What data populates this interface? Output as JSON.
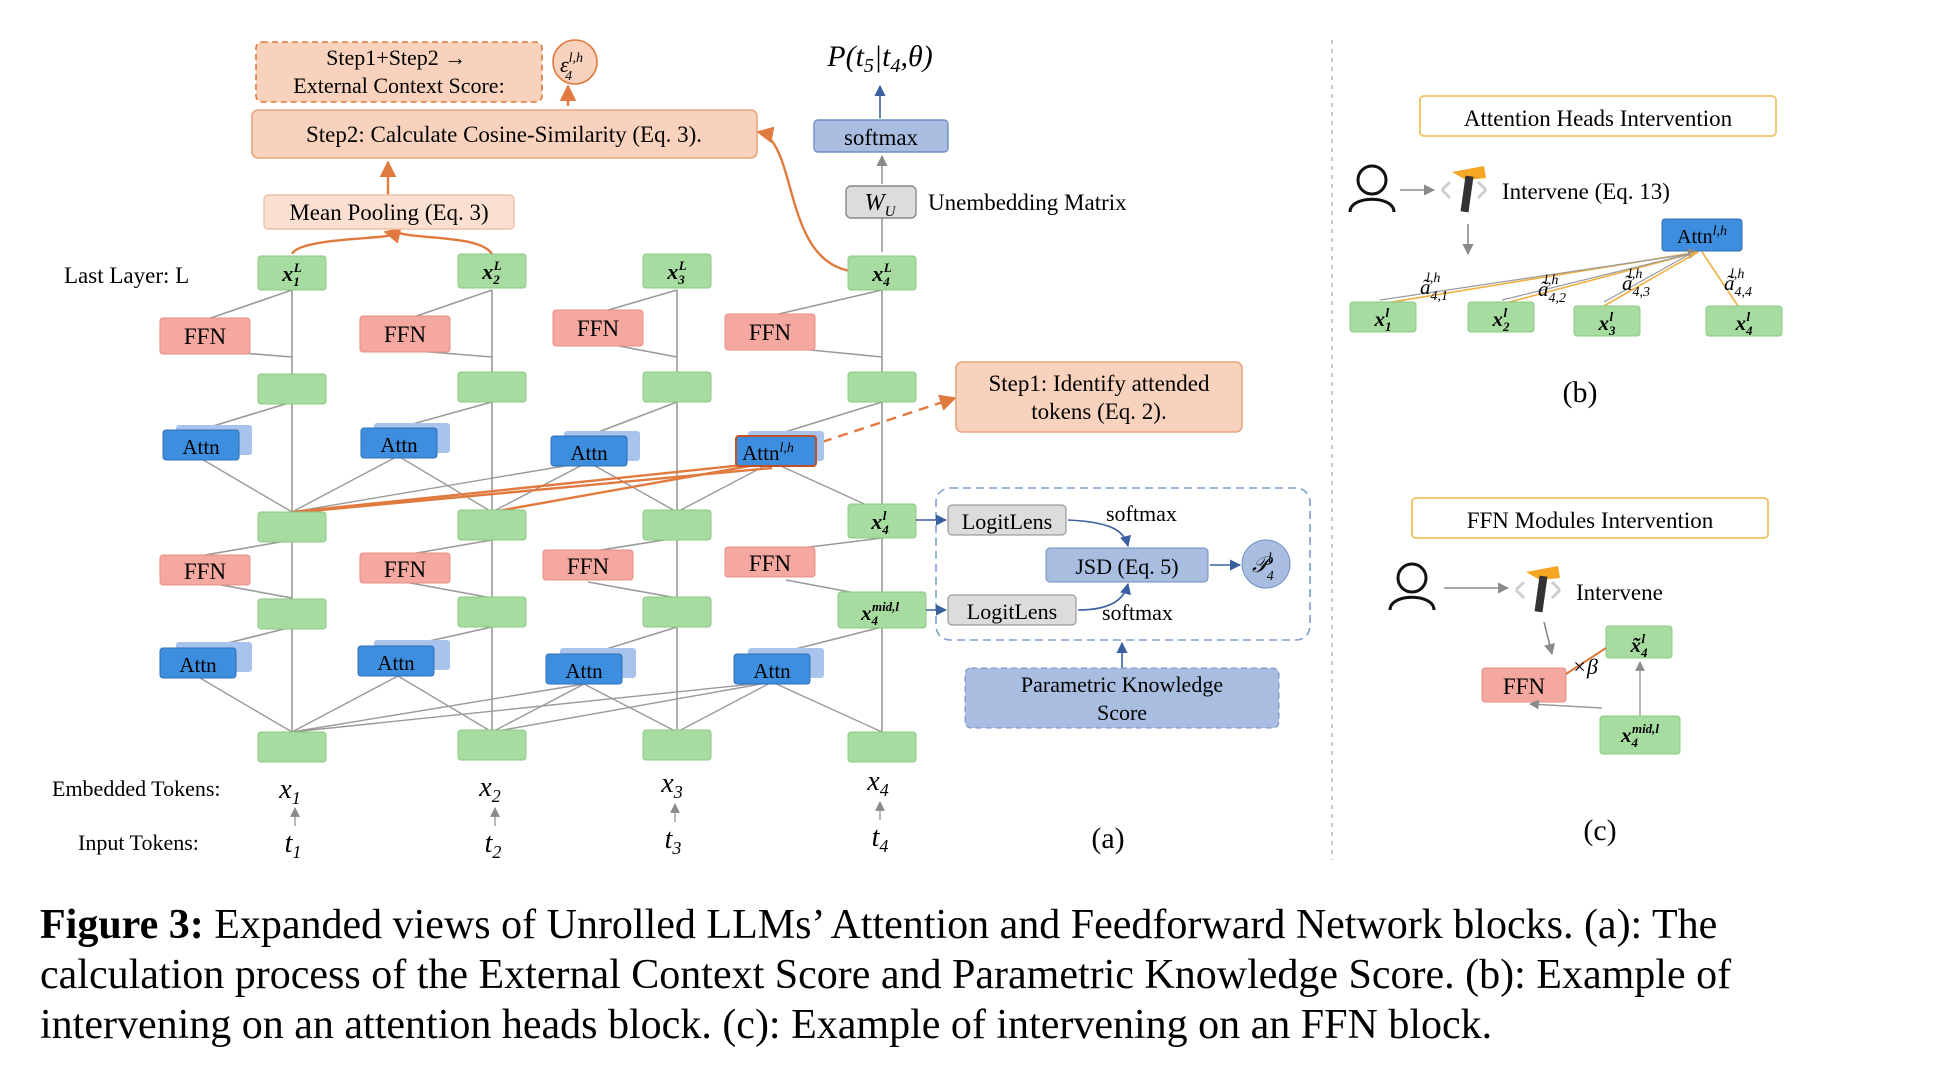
{
  "panel_a": {
    "label": "(a)",
    "row_labels": {
      "last_layer": "Last Layer: L",
      "embedded": "Embedded Tokens:",
      "input": "Input Tokens:"
    },
    "embedded_tokens": [
      "x1",
      "x2",
      "x3",
      "x4"
    ],
    "input_tokens": [
      "t1",
      "t2",
      "t3",
      "t4"
    ],
    "last_layer_tokens": [
      "x1L",
      "x2L",
      "x3L",
      "x4L"
    ],
    "ffn_label": "FFN",
    "attn_label": "Attn",
    "attn_lh_label": "Attn l,h",
    "mean_pooling": "Mean Pooling (Eq. 3)",
    "step2": "Step2: Calculate Cosine-Similarity (Eq. 3).",
    "step12": "Step1+Step2 → External Context Score:",
    "ecs_symbol": "ε4 l,h",
    "output_prob": "P(t5|t4,θ)",
    "softmax": "softmax",
    "wu": "WU",
    "unembedding": "Unembedding Matrix",
    "step1": "Step1: Identify attended tokens (Eq. 2).",
    "x4l": "x4 l",
    "x4mid": "x4 mid,l",
    "logitlens": "LogitLens",
    "jsd": "JSD (Eq. 5)",
    "pks_symbol": "P4 l",
    "pks": "Parametric Knowledge Score"
  },
  "panel_b": {
    "label": "(b)",
    "title": "Attention Heads Intervention",
    "intervene": "Intervene (Eq. 13)",
    "attn": "Attn l,h",
    "weights": [
      "ã4,1 l,h",
      "ã4,2 l,h",
      "ã4,3 l,h",
      "ã4,4 l,h"
    ],
    "tokens": [
      "x1 l",
      "x2 l",
      "x3 l",
      "x4 l"
    ]
  },
  "panel_c": {
    "label": "(c)",
    "title": "FFN Modules Intervention",
    "intervene": "Intervene",
    "ffn": "FFN",
    "beta": "×β",
    "x_tilde": "x̃4 l",
    "x_mid": "x4 mid,l"
  },
  "caption": {
    "bold": "Figure 3:",
    "text": "Expanded views of Unrolled LLMs’ Attention and Feedforward Network blocks. (a): The calculation process of the External Context Score and Parametric Knowledge Score. (b): Example of intervening on an attention heads block. (c): Example of intervening on an FFN block."
  },
  "colors": {
    "green": "#a6dca0",
    "ffn": "#f4a8a0",
    "attn": "#3e8ee0",
    "orange_box": "#f9d2bd",
    "orange_line": "#e07a3f",
    "blue_box": "#a8bde0"
  }
}
